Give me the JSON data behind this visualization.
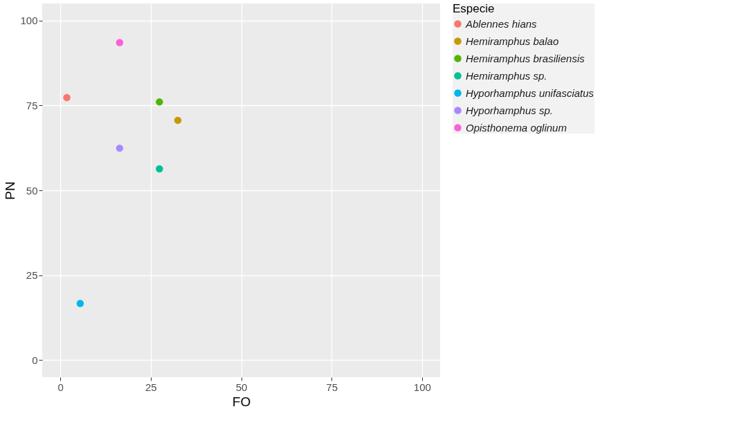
{
  "chart_data": {
    "type": "scatter",
    "xlabel": "FO",
    "ylabel": "PN",
    "legend_title": "Especie",
    "xlim": [
      -5,
      105
    ],
    "ylim": [
      -5,
      105
    ],
    "xticks": [
      0,
      25,
      50,
      75,
      100
    ],
    "yticks": [
      0,
      25,
      50,
      75,
      100
    ],
    "grid": true,
    "legend": "right",
    "marker": "circle",
    "series": [
      {
        "name": "Ablennes hians",
        "color": "#f8766d",
        "x": [
          1.8
        ],
        "values": [
          77.3
        ]
      },
      {
        "name": "Hemiramphus balao",
        "color": "#c49a00",
        "x": [
          32.5
        ],
        "values": [
          70.6
        ]
      },
      {
        "name": "Hemiramphus brasiliensis",
        "color": "#53b400",
        "x": [
          27.4
        ],
        "values": [
          76.0
        ]
      },
      {
        "name": "Hemiramphus sp.",
        "color": "#00c094",
        "x": [
          27.4
        ],
        "values": [
          56.3
        ]
      },
      {
        "name": "Hyporhamphus unifasciatus",
        "color": "#00b6eb",
        "x": [
          5.5
        ],
        "values": [
          16.7
        ]
      },
      {
        "name": "Hyporhamphus sp.",
        "color": "#a58aff",
        "x": [
          16.4
        ],
        "values": [
          62.4
        ]
      },
      {
        "name": "Opisthonema oglinum",
        "color": "#fb61d7",
        "x": [
          16.4
        ],
        "values": [
          93.5
        ]
      }
    ]
  }
}
